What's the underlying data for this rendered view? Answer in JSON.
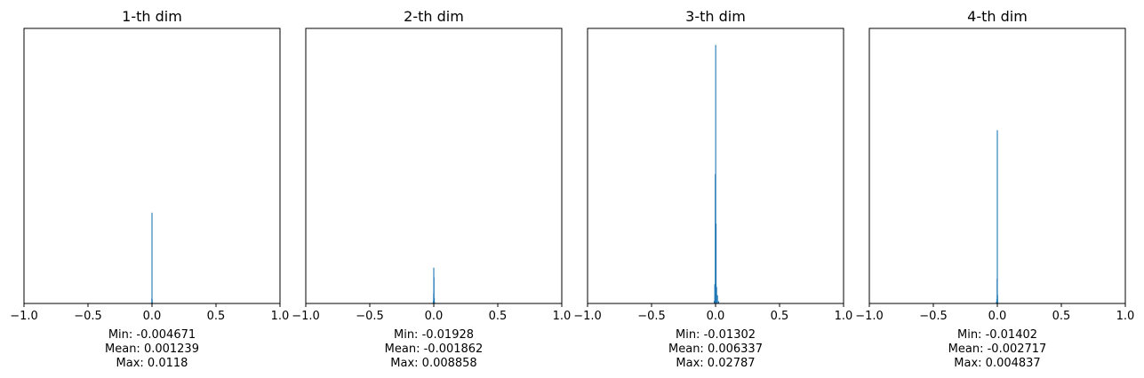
{
  "chart_data": [
    {
      "type": "histogram",
      "title": "1-th dim",
      "xlim": [
        -1.0,
        1.0
      ],
      "xticks": [
        "−1.0",
        "−0.5",
        "0.0",
        "0.5",
        "1.0"
      ],
      "y_axis_visible": false,
      "color": "#1f77b4",
      "bars": [
        {
          "x": -0.0025,
          "h": 0.003
        },
        {
          "x": -0.001,
          "h": 0.02
        },
        {
          "x": 0.0,
          "h": 0.33
        },
        {
          "x": 0.0012,
          "h": 0.015
        },
        {
          "x": 0.003,
          "h": 0.004
        }
      ],
      "stats": [
        "Min: -0.004671",
        "Mean: 0.001239",
        "Max: 0.0118"
      ]
    },
    {
      "type": "histogram",
      "title": "2-th dim",
      "xlim": [
        -1.0,
        1.0
      ],
      "xticks": [
        "−1.0",
        "−0.5",
        "0.0",
        "0.5",
        "1.0"
      ],
      "y_axis_visible": false,
      "color": "#1f77b4",
      "bars": [
        {
          "x": -0.005,
          "h": 0.004
        },
        {
          "x": -0.003,
          "h": 0.01
        },
        {
          "x": -0.001,
          "h": 0.035
        },
        {
          "x": 0.0,
          "h": 0.13
        },
        {
          "x": 0.0015,
          "h": 0.095
        },
        {
          "x": 0.004,
          "h": 0.02
        },
        {
          "x": 0.007,
          "h": 0.004
        }
      ],
      "stats": [
        "Min: -0.01928",
        "Mean: -0.001862",
        "Max: 0.008858"
      ]
    },
    {
      "type": "histogram",
      "title": "3-th dim",
      "xlim": [
        -1.0,
        1.0
      ],
      "xticks": [
        "−1.0",
        "−0.5",
        "0.0",
        "0.5",
        "1.0"
      ],
      "y_axis_visible": false,
      "color": "#1f77b4",
      "bars": [
        {
          "x": -0.01,
          "h": 0.01
        },
        {
          "x": -0.006,
          "h": 0.07
        },
        {
          "x": -0.002,
          "h": 0.47
        },
        {
          "x": 0.001,
          "h": 0.94
        },
        {
          "x": 0.004,
          "h": 0.29
        },
        {
          "x": 0.008,
          "h": 0.06
        },
        {
          "x": 0.015,
          "h": 0.03
        },
        {
          "x": 0.024,
          "h": 0.008
        }
      ],
      "stats": [
        "Min: -0.01302",
        "Mean: 0.006337",
        "Max: 0.02787"
      ]
    },
    {
      "type": "histogram",
      "title": "4-th dim",
      "xlim": [
        -1.0,
        1.0
      ],
      "xticks": [
        "−1.0",
        "−0.5",
        "0.0",
        "0.5",
        "1.0"
      ],
      "y_axis_visible": false,
      "color": "#1f77b4",
      "bars": [
        {
          "x": -0.008,
          "h": 0.005
        },
        {
          "x": -0.004,
          "h": 0.015
        },
        {
          "x": -0.0015,
          "h": 0.09
        },
        {
          "x": 0.0,
          "h": 0.63
        },
        {
          "x": 0.002,
          "h": 0.03
        },
        {
          "x": 0.004,
          "h": 0.005
        }
      ],
      "stats": [
        "Min: -0.01402",
        "Mean: -0.002717",
        "Max: 0.004837"
      ]
    }
  ]
}
